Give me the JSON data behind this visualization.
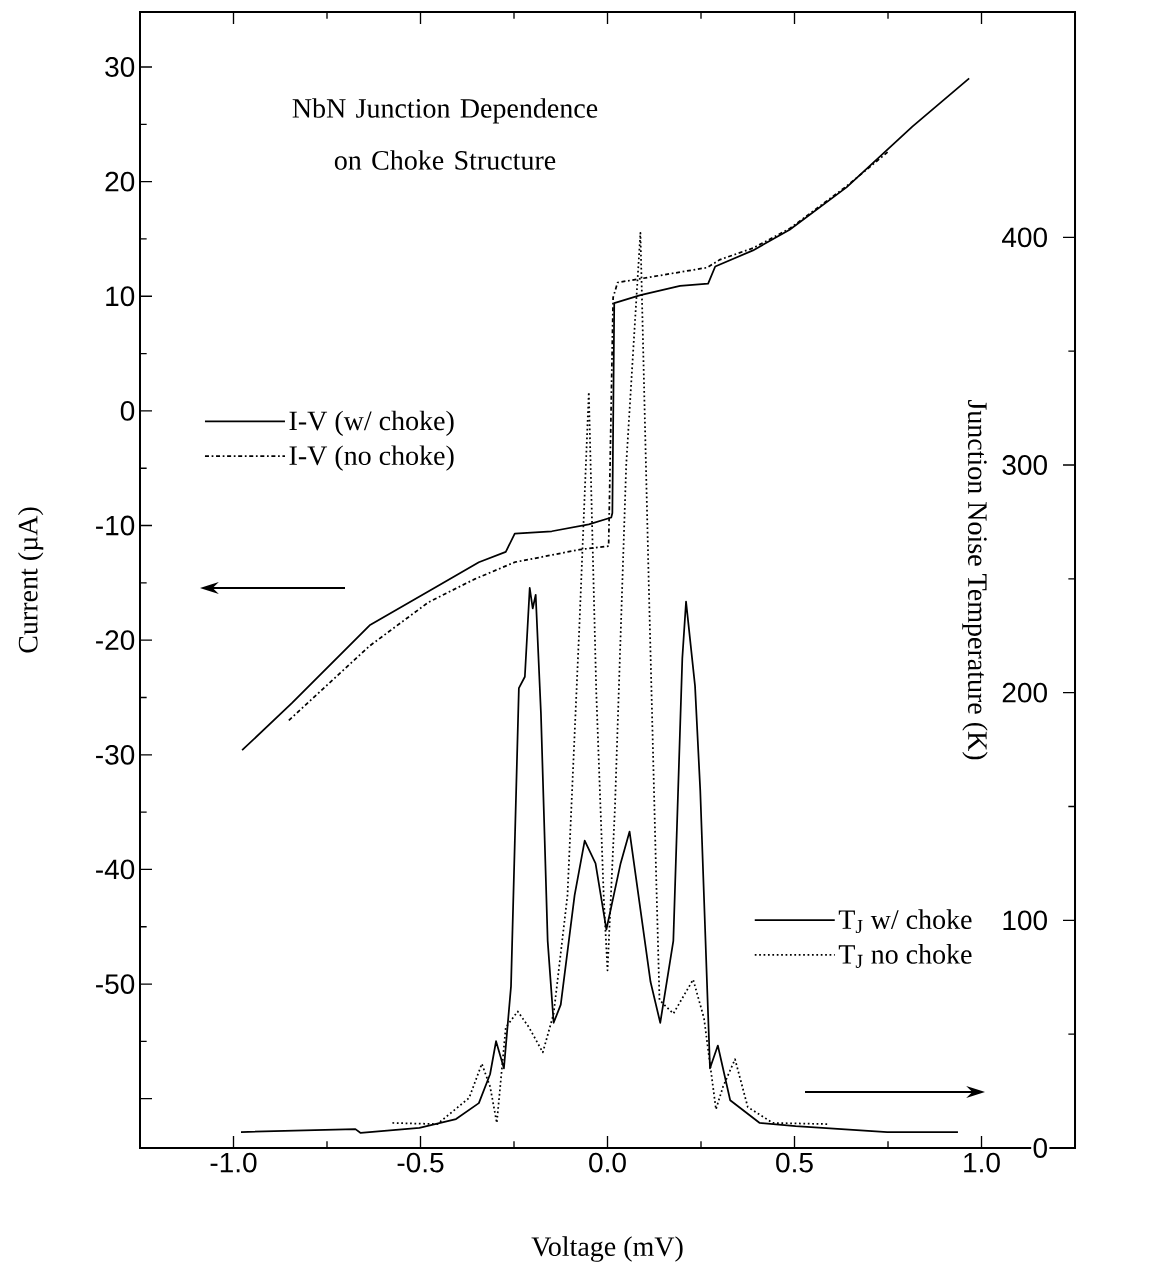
{
  "chart_data": {
    "type": "line",
    "title": "NbN Junction Dependence on Choke Structure",
    "xlabel": "Voltage (mV)",
    "ylabel": "Current (µA)",
    "y2label": "Junction Noise Temperature (K)",
    "xlim": [
      -1.25,
      1.25
    ],
    "xticks": [
      {
        "value": -1,
        "label": "-1.0"
      },
      {
        "value": -0.5,
        "label": "-0.5"
      },
      {
        "value": 0,
        "label": "0.0"
      },
      {
        "value": 0.5,
        "label": "0.5"
      },
      {
        "value": 1,
        "label": "1.0"
      }
    ],
    "ylim": [
      -64.3,
      34.8
    ],
    "yticks": [
      {
        "value": -60,
        "label": null
      },
      -50,
      -40,
      -30,
      -20,
      -10,
      0,
      10,
      20,
      30
    ],
    "y2lim": [
      0,
      499
    ],
    "y2ticks": [
      0,
      100,
      200,
      300,
      400
    ],
    "legend": "left",
    "series": [
      {
        "name": "I-V (w/ choke)",
        "color": "#000000",
        "line_style": "solid",
        "x": [
          -0.977,
          -0.844,
          -0.636,
          -0.455,
          -0.344,
          -0.272,
          -0.248,
          -0.149,
          -0.05,
          0.01,
          0.013,
          0.018,
          0.088,
          0.194,
          0.269,
          0.288,
          0.389,
          0.487,
          0.639,
          0.815,
          0.967
        ],
        "values": [
          -29.6,
          -25.5,
          -18.7,
          -15.3,
          -13.2,
          -12.3,
          -10.7,
          -10.5,
          -9.9,
          -9.3,
          -8.9,
          9.4,
          10.1,
          10.9,
          11.1,
          12.6,
          14.0,
          15.8,
          19.5,
          24.8,
          29.0
        ]
      },
      {
        "name": "I-V (no choke)",
        "color": "#000000",
        "line_style": "dashdot",
        "x": [
          -0.852,
          -0.636,
          -0.479,
          -0.357,
          -0.248,
          -0.075,
          0.003,
          0.015,
          0.027,
          0.266,
          0.301,
          0.389,
          0.487,
          0.639,
          0.75
        ],
        "values": [
          -27.0,
          -20.5,
          -16.7,
          -14.7,
          -13.2,
          -12.1,
          -11.8,
          9.9,
          11.2,
          12.5,
          13.2,
          14.2,
          15.9,
          19.6,
          22.6
        ]
      },
      {
        "name": "T$_{J}$  w/ choke",
        "axis": "y2",
        "color": "#000000",
        "line_style": "solid",
        "x": [
          -0.98,
          -0.674,
          -0.66,
          -0.503,
          -0.405,
          -0.344,
          -0.314,
          -0.298,
          -0.277,
          -0.258,
          -0.237,
          -0.221,
          -0.208,
          -0.2,
          -0.192,
          -0.178,
          -0.16,
          -0.144,
          -0.125,
          -0.088,
          -0.061,
          -0.032,
          -0.003,
          0.035,
          0.059,
          0.115,
          0.141,
          0.176,
          0.2,
          0.21,
          0.234,
          0.248,
          0.274,
          0.295,
          0.328,
          0.407,
          0.503,
          0.748,
          0.937
        ],
        "values": [
          7,
          8.3,
          6.6,
          8.8,
          12.7,
          19.7,
          32.4,
          46.9,
          35,
          71,
          202,
          207,
          246,
          237,
          243,
          191,
          91,
          55,
          63,
          111,
          135,
          125,
          96,
          125,
          139,
          73,
          55,
          91,
          215,
          240,
          203,
          157,
          35,
          45,
          21,
          11,
          9.6,
          7,
          7
        ]
      },
      {
        "name": "T$_{J}$  no choke",
        "axis": "y2",
        "color": "#000000",
        "line_style": "dotted",
        "x": [
          -0.575,
          -0.455,
          -0.37,
          -0.336,
          -0.314,
          -0.296,
          -0.272,
          -0.24,
          -0.21,
          -0.173,
          -0.144,
          -0.107,
          -0.075,
          -0.05,
          -0.03,
          -0.01,
          0.0,
          0.02,
          0.05,
          0.088,
          0.11,
          0.13,
          0.139,
          0.176,
          0.229,
          0.258,
          0.29,
          0.309,
          0.341,
          0.375,
          0.442,
          0.591
        ],
        "values": [
          11,
          10.5,
          22,
          37,
          27,
          11,
          53,
          60,
          53,
          42,
          59,
          111,
          230,
          332,
          200,
          110,
          78,
          150,
          300,
          402,
          250,
          120,
          65,
          59,
          74,
          57,
          17,
          27,
          39,
          18,
          11,
          10.5
        ]
      }
    ]
  }
}
